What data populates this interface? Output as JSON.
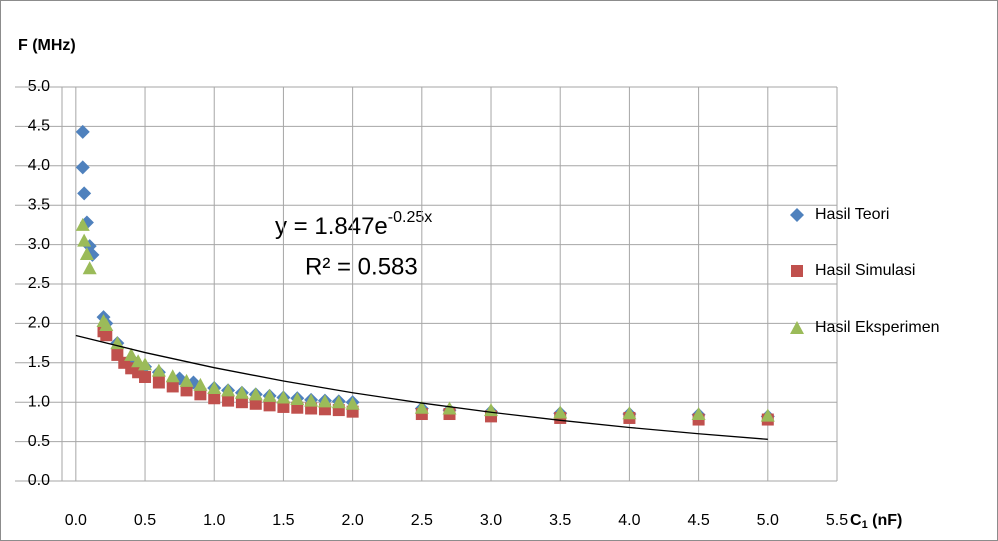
{
  "chart_data": {
    "type": "scatter",
    "y_label": "F (MHz)",
    "x_label": {
      "main": "C",
      "sub": "1",
      "rest": " (nF)"
    },
    "xlim": [
      -0.1,
      5.5
    ],
    "ylim": [
      0,
      5
    ],
    "xticks": [
      {
        "value": 0,
        "label": "0.0"
      },
      {
        "value": 0.5,
        "label": "0.5"
      },
      {
        "value": 1,
        "label": "1.0"
      },
      {
        "value": 1.5,
        "label": "1.5"
      },
      {
        "value": 2,
        "label": "2.0"
      },
      {
        "value": 2.5,
        "label": "2.5"
      },
      {
        "value": 3,
        "label": "3.0"
      },
      {
        "value": 3.5,
        "label": "3.5"
      },
      {
        "value": 4,
        "label": "4.0"
      },
      {
        "value": 4.5,
        "label": "4.5"
      },
      {
        "value": 5,
        "label": "5.0"
      },
      {
        "value": 5.5,
        "label": "5.5"
      }
    ],
    "yticks": [
      {
        "value": 0,
        "label": "0.0"
      },
      {
        "value": 0.5,
        "label": "0.5"
      },
      {
        "value": 1,
        "label": "1.0"
      },
      {
        "value": 1.5,
        "label": "1.5"
      },
      {
        "value": 2,
        "label": "2.0"
      },
      {
        "value": 2.5,
        "label": "2.5"
      },
      {
        "value": 3,
        "label": "3.0"
      },
      {
        "value": 3.5,
        "label": "3.5"
      },
      {
        "value": 4,
        "label": "4.0"
      },
      {
        "value": 4.5,
        "label": "4.5"
      },
      {
        "value": 5,
        "label": "5.0"
      }
    ],
    "grid": true,
    "legend": "right",
    "series": [
      {
        "name": "Hasil Teori",
        "color": "#4f81bd",
        "marker": "diamond",
        "x": [
          0.05,
          0.05,
          0.06,
          0.08,
          0.1,
          0.12,
          0.2,
          0.22,
          0.3,
          0.4,
          0.5,
          0.6,
          0.75,
          0.85,
          1.0,
          1.1,
          1.2,
          1.3,
          1.4,
          1.5,
          1.6,
          1.7,
          1.8,
          1.9,
          2.0,
          2.5,
          2.7,
          3.0,
          3.5,
          4.0,
          4.5,
          5.0
        ],
        "values": [
          4.43,
          3.98,
          3.65,
          3.28,
          2.98,
          2.87,
          2.08,
          2.0,
          1.75,
          1.55,
          1.45,
          1.38,
          1.3,
          1.25,
          1.18,
          1.15,
          1.12,
          1.1,
          1.08,
          1.06,
          1.05,
          1.03,
          1.02,
          1.01,
          1.0,
          0.92,
          0.9,
          0.88,
          0.86,
          0.85,
          0.84,
          0.82
        ]
      },
      {
        "name": "Hasil Simulasi",
        "color": "#c0504d",
        "marker": "square",
        "x": [
          0.2,
          0.22,
          0.3,
          0.35,
          0.4,
          0.45,
          0.5,
          0.6,
          0.7,
          0.8,
          0.9,
          1.0,
          1.1,
          1.2,
          1.3,
          1.4,
          1.5,
          1.6,
          1.7,
          1.8,
          1.9,
          2.0,
          2.5,
          2.7,
          3.0,
          3.5,
          4.0,
          4.5,
          5.0
        ],
        "values": [
          1.9,
          1.85,
          1.6,
          1.5,
          1.43,
          1.38,
          1.32,
          1.25,
          1.2,
          1.15,
          1.1,
          1.05,
          1.02,
          1.0,
          0.98,
          0.96,
          0.94,
          0.93,
          0.92,
          0.91,
          0.9,
          0.88,
          0.85,
          0.85,
          0.82,
          0.8,
          0.8,
          0.78,
          0.78
        ]
      },
      {
        "name": "Hasil Eksperimen",
        "color": "#9bbb59",
        "marker": "triangle",
        "x": [
          0.05,
          0.06,
          0.08,
          0.1,
          0.2,
          0.22,
          0.3,
          0.4,
          0.45,
          0.5,
          0.6,
          0.7,
          0.8,
          0.9,
          1.0,
          1.1,
          1.2,
          1.3,
          1.4,
          1.5,
          1.6,
          1.7,
          1.8,
          1.9,
          2.0,
          2.5,
          2.7,
          3.0,
          3.5,
          4.0,
          4.5,
          5.0
        ],
        "values": [
          3.25,
          3.05,
          2.88,
          2.7,
          2.03,
          1.98,
          1.75,
          1.6,
          1.52,
          1.48,
          1.4,
          1.33,
          1.27,
          1.22,
          1.18,
          1.15,
          1.12,
          1.1,
          1.08,
          1.06,
          1.04,
          1.02,
          1.01,
          1.0,
          0.98,
          0.93,
          0.92,
          0.9,
          0.87,
          0.86,
          0.85,
          0.83
        ]
      }
    ],
    "trendline": {
      "color": "#000000",
      "x": [
        0,
        0.5,
        1,
        1.5,
        2,
        2.5,
        3,
        3.5,
        4,
        4.5,
        5
      ],
      "values": [
        1.847,
        1.63,
        1.438,
        1.269,
        1.12,
        0.989,
        0.872,
        0.77,
        0.679,
        0.6,
        0.529
      ]
    },
    "annotations": {
      "equation": "y = 1.847e",
      "equation_exp": "-0.25x",
      "r2": "R² = 0.583"
    }
  }
}
